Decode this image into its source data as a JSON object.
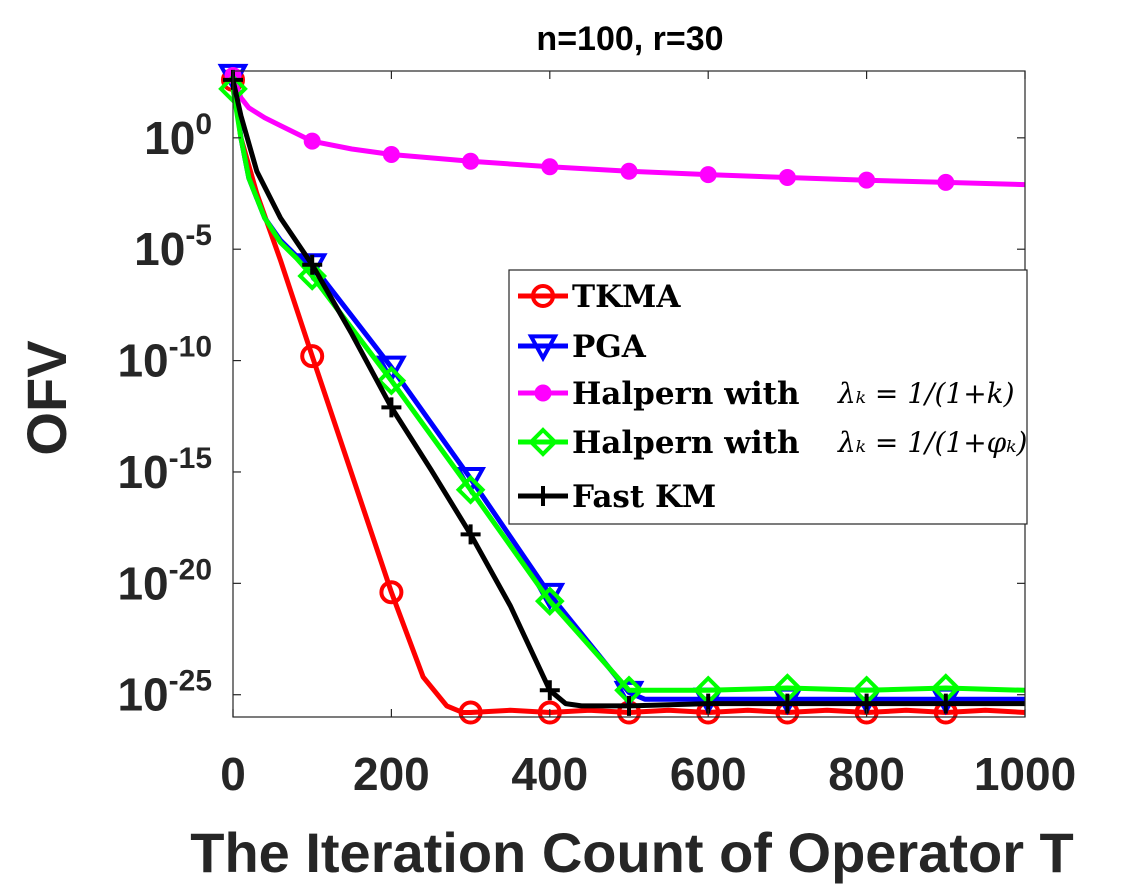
{
  "chart_data": {
    "type": "line",
    "title": "n=100, r=30",
    "xlabel": "The Iteration Count of Operator T",
    "ylabel": "OFV",
    "xscale": "linear",
    "yscale": "log",
    "xlim": [
      0,
      1000
    ],
    "ylim_log10": [
      -26,
      3
    ],
    "xticks": [
      0,
      200,
      400,
      600,
      800,
      1000
    ],
    "xtick_labels": [
      "0",
      "200",
      "400",
      "600",
      "800",
      "1000"
    ],
    "yticks_log10": [
      0,
      -5,
      -10,
      -15,
      -20,
      -25
    ],
    "ytick_bases": [
      "10",
      "10",
      "10",
      "10",
      "10",
      "10"
    ],
    "ytick_exponents": [
      "0",
      "-5",
      "-10",
      "-15",
      "-20",
      "-25"
    ],
    "grid": false,
    "legend_position": "center-right",
    "series": [
      {
        "name": "TKMA",
        "legend_label": "TKMA",
        "color": "#ff0000",
        "marker": "circle",
        "x": [
          0,
          10,
          30,
          60,
          100,
          150,
          200,
          240,
          270,
          290,
          300,
          350,
          400,
          450,
          500,
          550,
          600,
          650,
          700,
          750,
          800,
          850,
          900,
          950,
          1000
        ],
        "y_log10": [
          2.6,
          0,
          -2.5,
          -5.5,
          -9.8,
          -15.1,
          -20.4,
          -24.2,
          -25.5,
          -25.8,
          -25.8,
          -25.7,
          -25.8,
          -25.7,
          -25.8,
          -25.7,
          -25.8,
          -25.7,
          -25.8,
          -25.7,
          -25.8,
          -25.7,
          -25.8,
          -25.7,
          -25.8
        ]
      },
      {
        "name": "PGA",
        "legend_label": "PGA",
        "color": "#0000ff",
        "marker": "triangle-down",
        "x": [
          0,
          10,
          20,
          40,
          60,
          80,
          100,
          200,
          300,
          400,
          500,
          520,
          600,
          700,
          800,
          900,
          1000
        ],
        "y_log10": [
          2.8,
          0,
          -1.8,
          -3.6,
          -4.6,
          -5.3,
          -5.7,
          -10.3,
          -15.3,
          -20.5,
          -24.9,
          -25.2,
          -25.2,
          -25.2,
          -25.2,
          -25.2,
          -25.2
        ]
      },
      {
        "name": "Halpern lambda 1/(1+k)",
        "legend_label": "Halpern with ",
        "legend_math": "λₖ = 1/(1+k)",
        "color": "#ff00ff",
        "marker": "dot",
        "x": [
          0,
          10,
          20,
          40,
          60,
          100,
          150,
          200,
          300,
          400,
          500,
          600,
          700,
          800,
          900,
          1000
        ],
        "y_log10": [
          2.8,
          1.8,
          1.35,
          0.9,
          0.55,
          -0.15,
          -0.5,
          -0.75,
          -1.05,
          -1.3,
          -1.5,
          -1.65,
          -1.78,
          -1.9,
          -2.0,
          -2.1
        ]
      },
      {
        "name": "Halpern lambda 1/(1+phi_k)",
        "legend_label": "Halpern with ",
        "legend_math": "λₖ = 1/(1+φₖ)",
        "color": "#00ff00",
        "marker": "diamond",
        "x": [
          0,
          10,
          20,
          40,
          60,
          80,
          100,
          200,
          300,
          400,
          500,
          520,
          600,
          700,
          800,
          900,
          1000
        ],
        "y_log10": [
          2.2,
          0,
          -1.8,
          -3.6,
          -4.7,
          -5.4,
          -6.2,
          -10.9,
          -15.8,
          -20.8,
          -24.8,
          -24.8,
          -24.8,
          -24.7,
          -24.8,
          -24.7,
          -24.8
        ]
      },
      {
        "name": "Fast KM",
        "legend_label": "Fast KM",
        "color": "#000000",
        "marker": "plus",
        "x": [
          0,
          10,
          30,
          60,
          100,
          150,
          200,
          250,
          300,
          350,
          400,
          420,
          440,
          500,
          600,
          700,
          800,
          900,
          1000
        ],
        "y_log10": [
          2.6,
          1.0,
          -1.5,
          -3.6,
          -5.7,
          -8.8,
          -12.1,
          -14.9,
          -17.8,
          -21.0,
          -24.8,
          -25.4,
          -25.5,
          -25.5,
          -25.4,
          -25.4,
          -25.4,
          -25.4,
          -25.4
        ]
      }
    ]
  }
}
